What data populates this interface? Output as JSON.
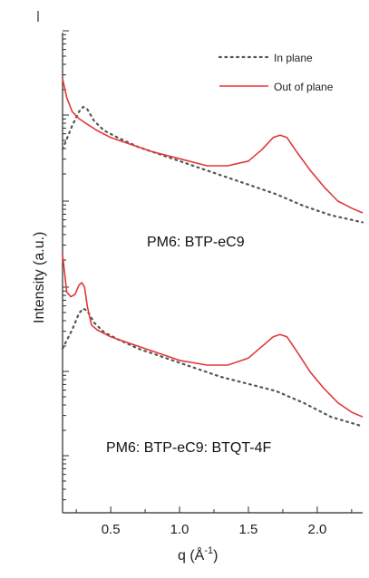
{
  "chart_data": {
    "type": "line",
    "title": "",
    "xlabel": "q (Å⁻¹)",
    "xlabel_main": "q (Å",
    "xlabel_sup": "-1",
    "xlabel_close": ")",
    "ylabel": "Intensity (a.u.)",
    "xlim": [
      0.15,
      2.33
    ],
    "x_ticks": [
      "0.5",
      "1.0",
      "1.5",
      "2.0"
    ],
    "x_tick_values": [
      0.5,
      1.0,
      1.5,
      2.0
    ],
    "y_log_scale": true,
    "y_tick_labels_shown": false,
    "grid": false,
    "legend_position": "top-right",
    "series_names": [
      "In plane",
      "Out of plane"
    ],
    "series_colors": {
      "In plane": "#555555",
      "Out of plane": "#e0383b"
    },
    "panels": [
      {
        "annotation": "PM6: BTP-eC9",
        "series": [
          {
            "name": "In plane",
            "x": [
              0.15,
              0.22,
              0.27,
              0.3,
              0.33,
              0.38,
              0.45,
              0.55,
              0.7,
              0.9,
              1.1,
              1.3,
              1.5,
              1.7,
              1.9,
              2.1,
              2.33
            ],
            "y": [
              0.52,
              0.62,
              0.68,
              0.7,
              0.69,
              0.64,
              0.6,
              0.57,
              0.53,
              0.49,
              0.45,
              0.41,
              0.37,
              0.33,
              0.28,
              0.24,
              0.21
            ]
          },
          {
            "name": "Out of plane",
            "x": [
              0.15,
              0.18,
              0.22,
              0.27,
              0.32,
              0.4,
              0.5,
              0.65,
              0.8,
              1.0,
              1.2,
              1.35,
              1.5,
              1.6,
              1.68,
              1.73,
              1.78,
              1.85,
              1.95,
              2.05,
              2.15,
              2.25,
              2.33
            ],
            "y": [
              0.82,
              0.74,
              0.68,
              0.65,
              0.63,
              0.6,
              0.57,
              0.54,
              0.51,
              0.48,
              0.45,
              0.45,
              0.47,
              0.52,
              0.57,
              0.58,
              0.57,
              0.51,
              0.43,
              0.36,
              0.3,
              0.27,
              0.25
            ]
          }
        ]
      },
      {
        "annotation": "PM6: BTP-eC9: BTQT-4F",
        "series": [
          {
            "name": "In plane",
            "x": [
              0.15,
              0.22,
              0.27,
              0.3,
              0.33,
              0.38,
              0.45,
              0.55,
              0.7,
              0.9,
              1.1,
              1.3,
              1.5,
              1.7,
              1.9,
              2.1,
              2.33
            ],
            "y": [
              0.52,
              0.6,
              0.67,
              0.69,
              0.68,
              0.63,
              0.59,
              0.56,
              0.52,
              0.48,
              0.44,
              0.4,
              0.37,
              0.34,
              0.29,
              0.23,
              0.19
            ]
          },
          {
            "name": "Out of plane",
            "x": [
              0.15,
              0.18,
              0.21,
              0.24,
              0.27,
              0.29,
              0.31,
              0.33,
              0.36,
              0.4,
              0.5,
              0.65,
              0.8,
              1.0,
              1.2,
              1.35,
              1.5,
              1.6,
              1.68,
              1.73,
              1.78,
              1.85,
              1.95,
              2.05,
              2.15,
              2.25,
              2.33
            ],
            "y": [
              0.92,
              0.76,
              0.74,
              0.75,
              0.79,
              0.8,
              0.78,
              0.7,
              0.62,
              0.6,
              0.57,
              0.54,
              0.51,
              0.47,
              0.45,
              0.45,
              0.48,
              0.53,
              0.57,
              0.58,
              0.57,
              0.51,
              0.42,
              0.35,
              0.29,
              0.25,
              0.23
            ]
          }
        ]
      }
    ]
  }
}
